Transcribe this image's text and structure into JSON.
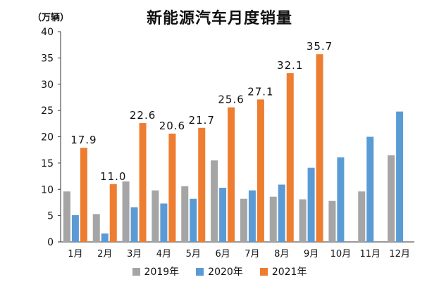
{
  "chart_data": {
    "type": "bar",
    "title": "新能源汽车月度销量",
    "unit_label": "（万辆）",
    "ylim": [
      0,
      40
    ],
    "yticks": [
      0,
      5,
      10,
      15,
      20,
      25,
      30,
      35,
      40
    ],
    "categories": [
      "1月",
      "2月",
      "3月",
      "4月",
      "5月",
      "6月",
      "7月",
      "8月",
      "9月",
      "10月",
      "11月",
      "12月"
    ],
    "series": [
      {
        "name": "2019年",
        "color": "#a5a5a5",
        "values": [
          9.6,
          5.3,
          11.5,
          9.8,
          10.6,
          15.5,
          8.2,
          8.6,
          8.1,
          7.8,
          9.6,
          16.5
        ]
      },
      {
        "name": "2020年",
        "color": "#5b9bd5",
        "values": [
          5.1,
          1.6,
          6.6,
          7.3,
          8.2,
          10.3,
          9.8,
          10.9,
          14.1,
          16.1,
          20.0,
          24.8
        ]
      },
      {
        "name": "2021年",
        "color": "#ed7d31",
        "values": [
          17.9,
          11.0,
          22.6,
          20.6,
          21.7,
          25.6,
          27.1,
          32.1,
          35.7,
          null,
          null,
          null
        ]
      }
    ],
    "labeled_series": "2021年"
  }
}
